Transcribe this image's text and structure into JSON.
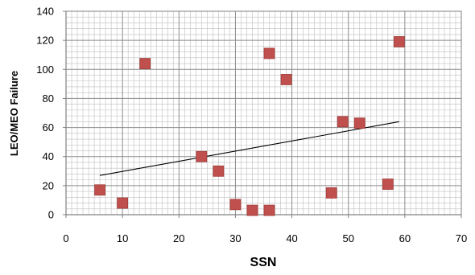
{
  "chart_data": {
    "type": "scatter",
    "xlabel": "SSN",
    "ylabel": "LEO/MEO Failure",
    "xlim": [
      0,
      70
    ],
    "ylim": [
      0,
      140
    ],
    "x_ticks": [
      0,
      10,
      20,
      30,
      40,
      50,
      60,
      70
    ],
    "y_ticks": [
      0,
      20,
      40,
      60,
      80,
      100,
      120,
      140
    ],
    "x_minor_step": 1,
    "y_minor_step": 4,
    "grid": true,
    "points": [
      {
        "x": 6,
        "y": 17
      },
      {
        "x": 10,
        "y": 8
      },
      {
        "x": 14,
        "y": 104
      },
      {
        "x": 24,
        "y": 40
      },
      {
        "x": 27,
        "y": 30
      },
      {
        "x": 30,
        "y": 7
      },
      {
        "x": 33,
        "y": 3
      },
      {
        "x": 36,
        "y": 3
      },
      {
        "x": 36,
        "y": 111
      },
      {
        "x": 39,
        "y": 93
      },
      {
        "x": 47,
        "y": 15
      },
      {
        "x": 49,
        "y": 64
      },
      {
        "x": 52,
        "y": 63
      },
      {
        "x": 57,
        "y": 21
      },
      {
        "x": 59,
        "y": 119
      }
    ],
    "trendline": {
      "type": "linear",
      "from": {
        "x": 6,
        "y": 27
      },
      "to": {
        "x": 59,
        "y": 64
      }
    },
    "colors": {
      "marker": "#c0504d",
      "marker_edge": "#a03c3a",
      "trendline": "#000000",
      "major_grid": "#8c8c8c",
      "minor_grid": "#bfbfbf",
      "axis": "#808080"
    }
  }
}
